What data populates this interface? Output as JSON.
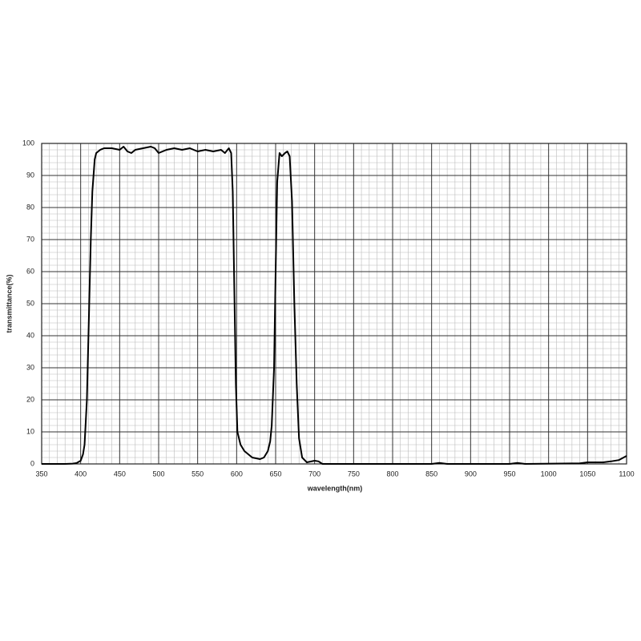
{
  "chart_data": {
    "type": "line",
    "x_label": "wavelength(nm)",
    "y_label": "transmittance(%)",
    "x": [
      350,
      380,
      390,
      395,
      400,
      403,
      405,
      408,
      410,
      413,
      415,
      418,
      420,
      425,
      430,
      440,
      450,
      455,
      460,
      465,
      470,
      480,
      490,
      495,
      500,
      505,
      510,
      520,
      530,
      540,
      550,
      560,
      570,
      580,
      585,
      590,
      593,
      595,
      597,
      599,
      601,
      605,
      610,
      620,
      630,
      635,
      640,
      643,
      645,
      648,
      650,
      652,
      655,
      658,
      662,
      665,
      668,
      671,
      674,
      677,
      680,
      684,
      690,
      700,
      705,
      710,
      750,
      850,
      860,
      870,
      950,
      960,
      970,
      1040,
      1050,
      1070,
      1080,
      1090,
      1100
    ],
    "values": [
      0,
      0,
      0.1,
      0.3,
      1,
      3,
      6,
      20,
      40,
      70,
      85,
      95,
      97,
      98,
      98.5,
      98.5,
      98,
      99,
      97.5,
      97,
      98,
      98.5,
      99,
      98.5,
      97,
      97.5,
      98,
      98.5,
      98,
      98.5,
      97.5,
      98,
      97.5,
      98,
      97,
      98.5,
      97,
      85,
      55,
      25,
      10,
      6,
      4,
      2,
      1.5,
      2,
      4,
      7,
      12,
      30,
      60,
      88,
      97,
      96,
      97,
      97.5,
      96,
      82,
      50,
      25,
      8,
      2,
      0.5,
      1,
      0.8,
      0,
      0,
      0,
      0.3,
      0,
      0,
      0.3,
      0,
      0.2,
      0.5,
      0.5,
      0.8,
      1.2,
      2.5
    ],
    "color": "#000000",
    "xlim": [
      350,
      1100
    ],
    "ylim": [
      0,
      100
    ],
    "xticks": [
      350,
      400,
      450,
      500,
      550,
      600,
      650,
      700,
      750,
      800,
      850,
      900,
      950,
      1000,
      1050,
      1100
    ],
    "yticks": [
      0,
      10,
      20,
      30,
      40,
      50,
      60,
      70,
      80,
      90,
      100
    ],
    "grid": true,
    "minor_grid": true
  }
}
